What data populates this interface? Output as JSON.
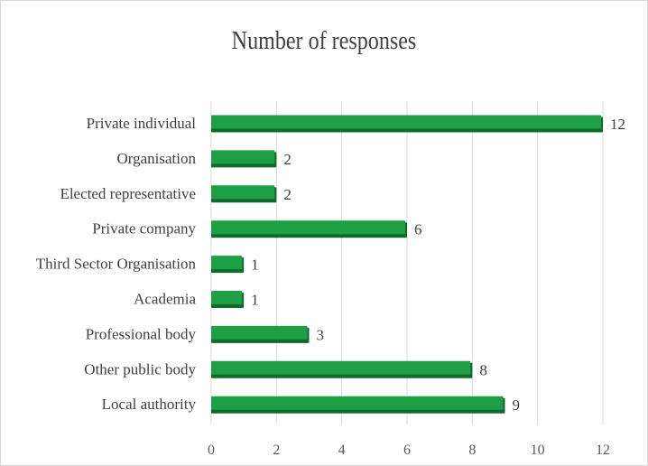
{
  "chart_data": {
    "type": "bar",
    "orientation": "horizontal",
    "title": "Number of responses",
    "xlabel": "",
    "ylabel": "",
    "categories": [
      "Private individual",
      "Organisation",
      "Elected representative",
      "Private company",
      "Third Sector Organisation",
      "Academia",
      "Professional body",
      "Other public body",
      "Local authority"
    ],
    "values": [
      12,
      2,
      2,
      6,
      1,
      1,
      3,
      8,
      9
    ],
    "xlim": [
      0,
      12
    ],
    "xticks": [
      0,
      2,
      4,
      6,
      8,
      10,
      12
    ],
    "grid": "vertical",
    "legend": "none",
    "bar_color": "#1e9e45",
    "bar_edge_color": "#0f6b2c",
    "data_labels": true
  }
}
